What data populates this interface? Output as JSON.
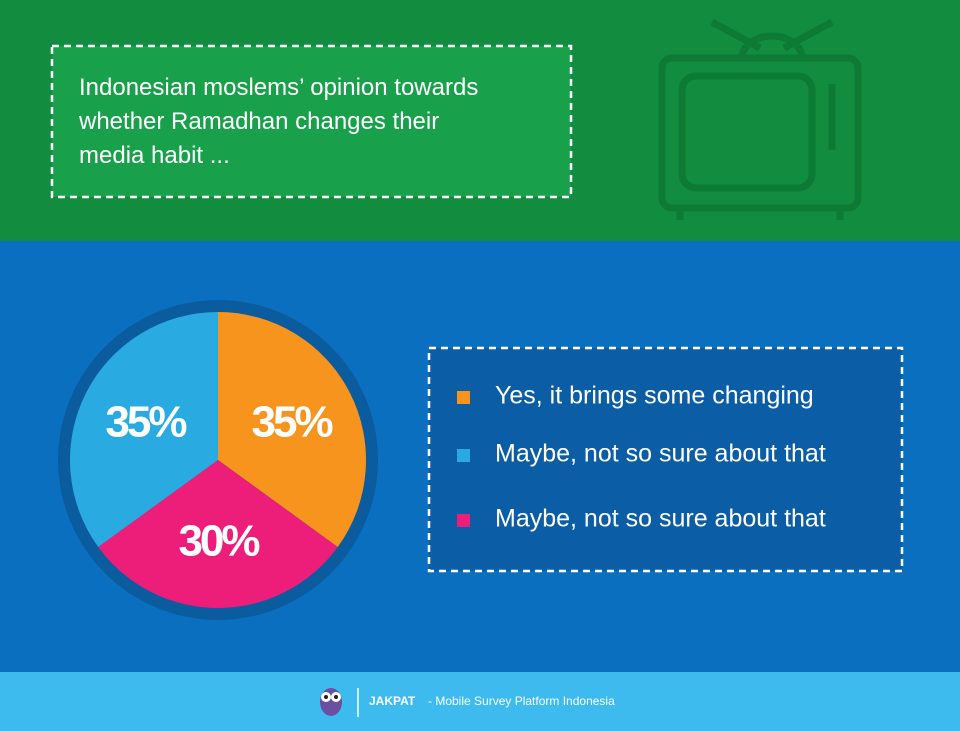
{
  "chart_data": {
    "type": "pie",
    "title": "Indonesian moslems’ opinion towards whether Ramadhan changes their media habit ...",
    "series": [
      {
        "name": "Yes, it brings some changing",
        "color": "#f7941d",
        "values": [
          35
        ],
        "value_labels": [
          "35%"
        ]
      },
      {
        "name": "Maybe, not so sure about that",
        "color": "#29abe2",
        "values": [
          35
        ],
        "value_labels": [
          "35%"
        ]
      },
      {
        "name": "Maybe, not so sure about that",
        "color": "#ed1e79",
        "values": [
          30
        ],
        "value_labels": [
          "30%"
        ]
      }
    ]
  },
  "footer": {
    "brand": "JAKPAT",
    "tagline": "- Mobile Survey Platform Indonesia"
  }
}
